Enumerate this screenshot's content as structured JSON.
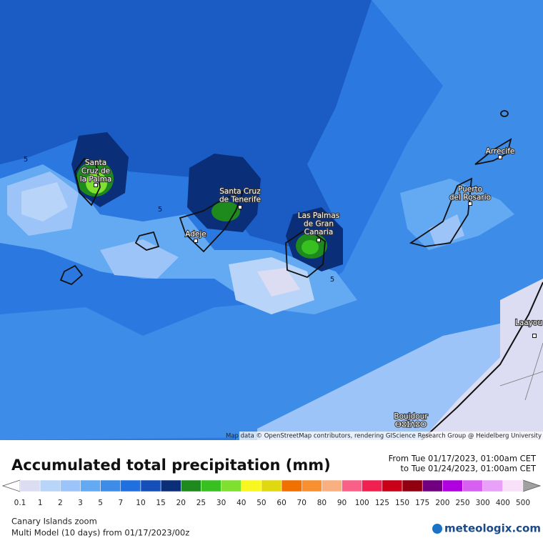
{
  "map": {
    "places": [
      {
        "lines": [
          "Santa",
          "Cruz de",
          "la Palma"
        ]
      },
      {
        "lines": [
          "Santa Cruz",
          "de Tenerife"
        ]
      },
      {
        "lines": [
          "Adeje"
        ]
      },
      {
        "lines": [
          "Las Palmas",
          "de Gran",
          "Canaria"
        ]
      },
      {
        "lines": [
          "Puerto",
          "del Rosario"
        ]
      },
      {
        "lines": [
          "Arrecife"
        ]
      },
      {
        "lines": [
          "Laayou"
        ]
      },
      {
        "lines": [
          "Boujdour",
          "ⴱⵓⵊⴷⵓⵔ"
        ]
      }
    ],
    "contour_labels": [
      5,
      5,
      5
    ],
    "attribution": "Map data © OpenStreetMap contributors, rendering GIScience Research Group @ Heidelberg University"
  },
  "header": {
    "title": "Accumulated total precipitation (mm)",
    "from": "From Tue 01/17/2023, 01:00am CET",
    "to": "to Tue 01/24/2023, 01:00am CET"
  },
  "legend": {
    "ticks": [
      0.1,
      1,
      2,
      3,
      5,
      7,
      10,
      15,
      20,
      25,
      30,
      40,
      50,
      60,
      70,
      80,
      90,
      100,
      125,
      150,
      175,
      200,
      250,
      300,
      400,
      500
    ],
    "low_color": "#ffffff",
    "high_color": "#a0a0a0",
    "colors": [
      "#dcdcf2",
      "#b8d4f8",
      "#9cc4f8",
      "#64aaf2",
      "#3c8ce8",
      "#2070e0",
      "#1450b8",
      "#0a2e78",
      "#1e8a1e",
      "#38c020",
      "#80e030",
      "#f8f820",
      "#e0d810",
      "#f07000",
      "#f89030",
      "#f8b080",
      "#f86088",
      "#f02050",
      "#c80018",
      "#900010",
      "#700080",
      "#b000e0",
      "#d860f0",
      "#e8a0f8",
      "#f8e0f8",
      "#d0d0d0"
    ]
  },
  "footer": {
    "region": "Canary Islands zoom",
    "model": "Multi Model (10 days) from 01/17/2023/00z",
    "brand": "meteologix.com"
  }
}
